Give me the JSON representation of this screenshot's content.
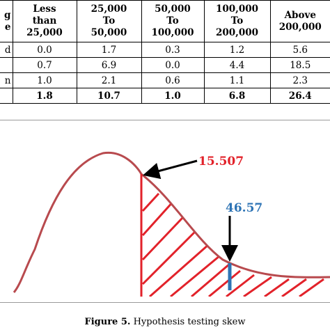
{
  "table": {
    "headers": [
      "e",
      "Less than 25,000",
      "25,000 To 50,000",
      "50,000 To 100,000",
      "100,000 To 200,000",
      "Above 200,000"
    ],
    "header_lines": [
      [
        "g",
        "e"
      ],
      [
        "Less",
        "than",
        "25,000"
      ],
      [
        "25,000",
        "To",
        "50,000"
      ],
      [
        "50,000",
        "To",
        "100,000"
      ],
      [
        "100,000",
        "To",
        "200,000"
      ],
      [
        "Above",
        "200,000"
      ]
    ],
    "rows": [
      {
        "label": "d",
        "values": [
          "0.0",
          "1.7",
          "0.3",
          "1.2",
          "5.6"
        ]
      },
      {
        "label": "",
        "values": [
          "0.7",
          "6.9",
          "0.0",
          "4.4",
          "18.5"
        ]
      },
      {
        "label": "n",
        "values": [
          "1.0",
          "2.1",
          "0.6",
          "1.1",
          "2.3"
        ]
      },
      {
        "label": "",
        "values": [
          "1.8",
          "10.7",
          "1.0",
          "6.8",
          "26.4"
        ]
      }
    ]
  },
  "figure": {
    "critical_value_label": "15.507",
    "test_statistic_label": "46.57",
    "colors": {
      "curve": "#b84a4e",
      "critical": "#e2222a",
      "statistic": "#2e74b5",
      "arrow": "#000000"
    },
    "caption_number": "Figure 5.",
    "caption_text": "Hypothesis testing skew"
  }
}
